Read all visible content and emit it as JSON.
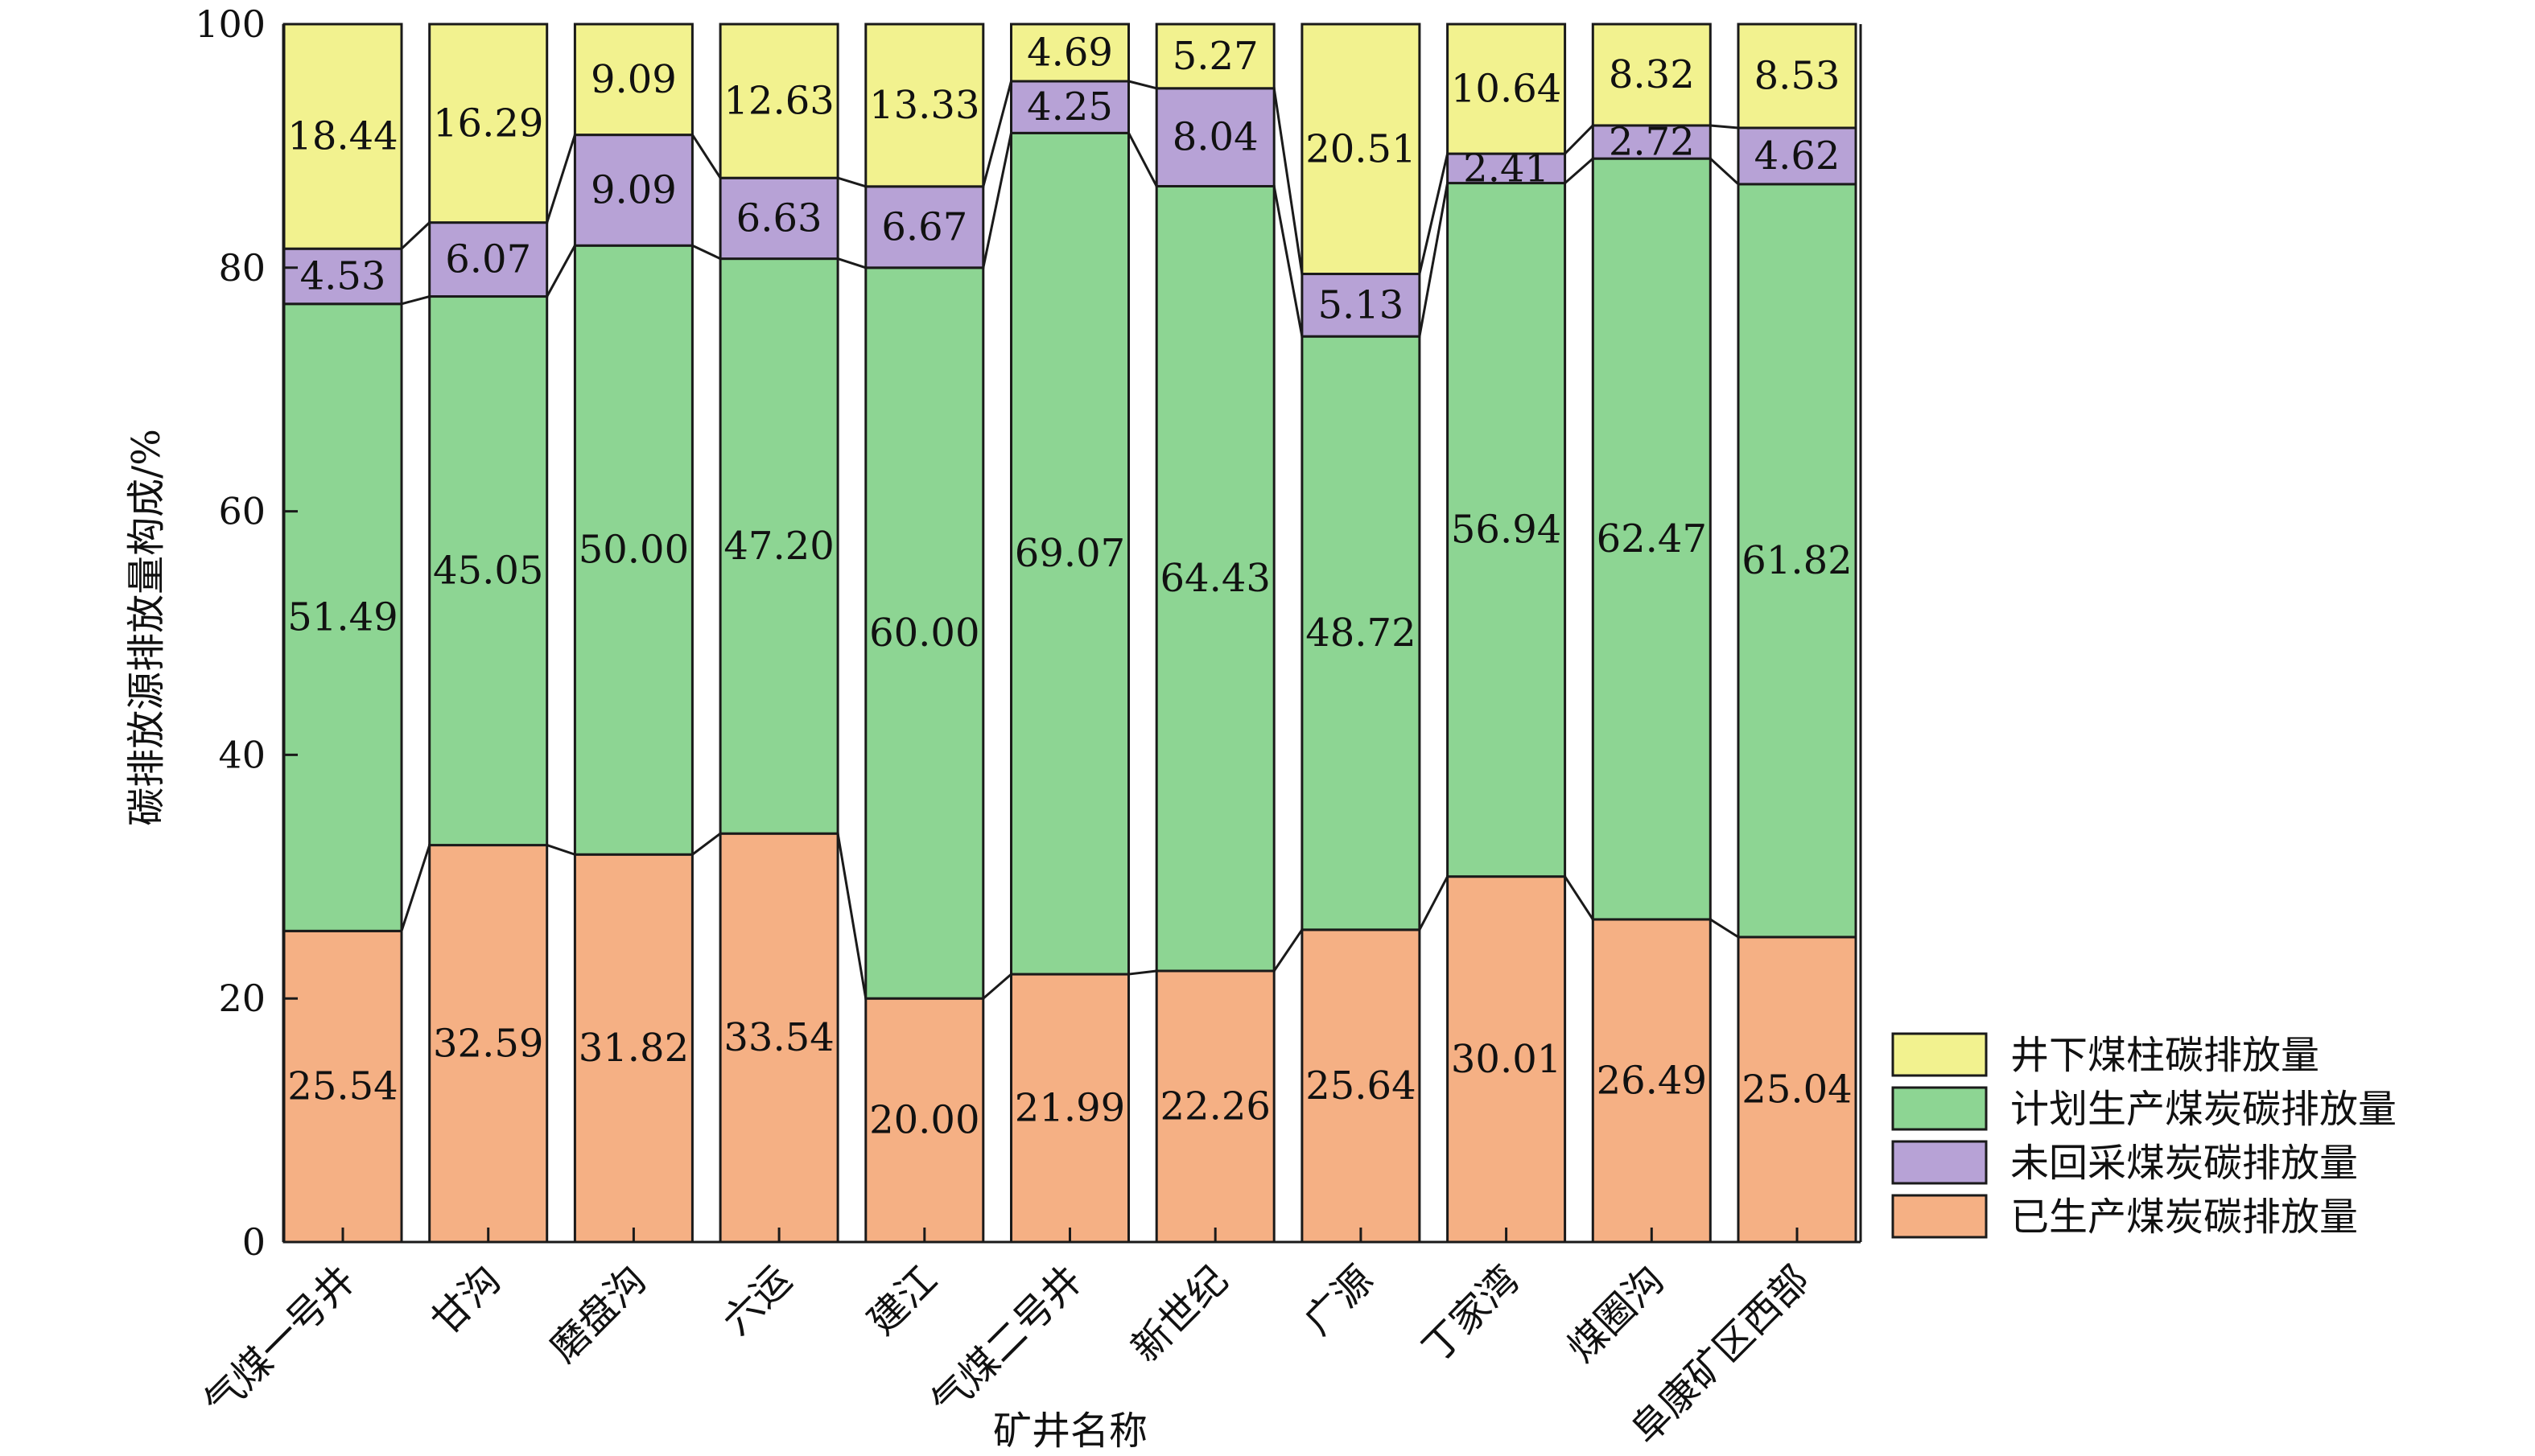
{
  "chart_data": {
    "type": "bar",
    "stacked": true,
    "xlabel": "矿井名称",
    "ylabel": "碳排放源排放量构成/%",
    "ylim": [
      0,
      100
    ],
    "yticks": [
      "0",
      "20",
      "40",
      "60",
      "80",
      "100"
    ],
    "ytick_values": [
      0,
      20,
      40,
      60,
      80,
      100
    ],
    "legend_position": "bottom-right",
    "categories": [
      "气煤一号井",
      "甘沟",
      "磨盘沟",
      "六运",
      "建江",
      "气煤二号井",
      "新世纪",
      "广源",
      "丁家湾",
      "煤圈沟",
      "阜康矿区西部"
    ],
    "series": [
      {
        "name": "已生产煤炭碳排放量",
        "color": "#f5b084",
        "values": [
          25.54,
          32.59,
          31.82,
          33.54,
          20.0,
          21.99,
          22.26,
          25.64,
          30.01,
          26.49,
          25.04
        ],
        "labels": [
          "25.54",
          "32.59",
          "31.82",
          "33.54",
          "20.00",
          "21.99",
          "22.26",
          "25.64",
          "30.01",
          "26.49",
          "25.04"
        ]
      },
      {
        "name": "计划生产煤炭碳排放量",
        "color": "#8dd593",
        "values": [
          51.49,
          45.05,
          50.0,
          47.2,
          60.0,
          69.07,
          64.43,
          48.72,
          56.94,
          62.47,
          61.82
        ],
        "labels": [
          "51.49",
          "45.05",
          "50.00",
          "47.20",
          "60.00",
          "69.07",
          "64.43",
          "48.72",
          "56.94",
          "62.47",
          "61.82"
        ]
      },
      {
        "name": "未回采煤炭碳排放量",
        "color": "#b7a2d6",
        "values": [
          4.53,
          6.07,
          9.09,
          6.63,
          6.67,
          4.25,
          8.04,
          5.13,
          2.41,
          2.72,
          4.62
        ],
        "labels": [
          "4.53",
          "6.07",
          "9.09",
          "6.63",
          "6.67",
          "4.25",
          "8.04",
          "5.13",
          "2.41",
          "2.72",
          "4.62"
        ]
      },
      {
        "name": "井下煤柱碳排放量",
        "color": "#f2f28f",
        "values": [
          18.44,
          16.29,
          9.09,
          12.63,
          13.33,
          4.69,
          5.27,
          20.51,
          10.64,
          8.32,
          8.53
        ],
        "labels": [
          "18.44",
          "16.29",
          "9.09",
          "12.63",
          "13.33",
          "4.69",
          "5.27",
          "20.51",
          "10.64",
          "8.32",
          "8.53"
        ]
      }
    ],
    "legend_order": [
      "井下煤柱碳排放量",
      "计划生产煤炭碳排放量",
      "未回采煤炭碳排放量",
      "已生产煤炭碳排放量"
    ]
  }
}
